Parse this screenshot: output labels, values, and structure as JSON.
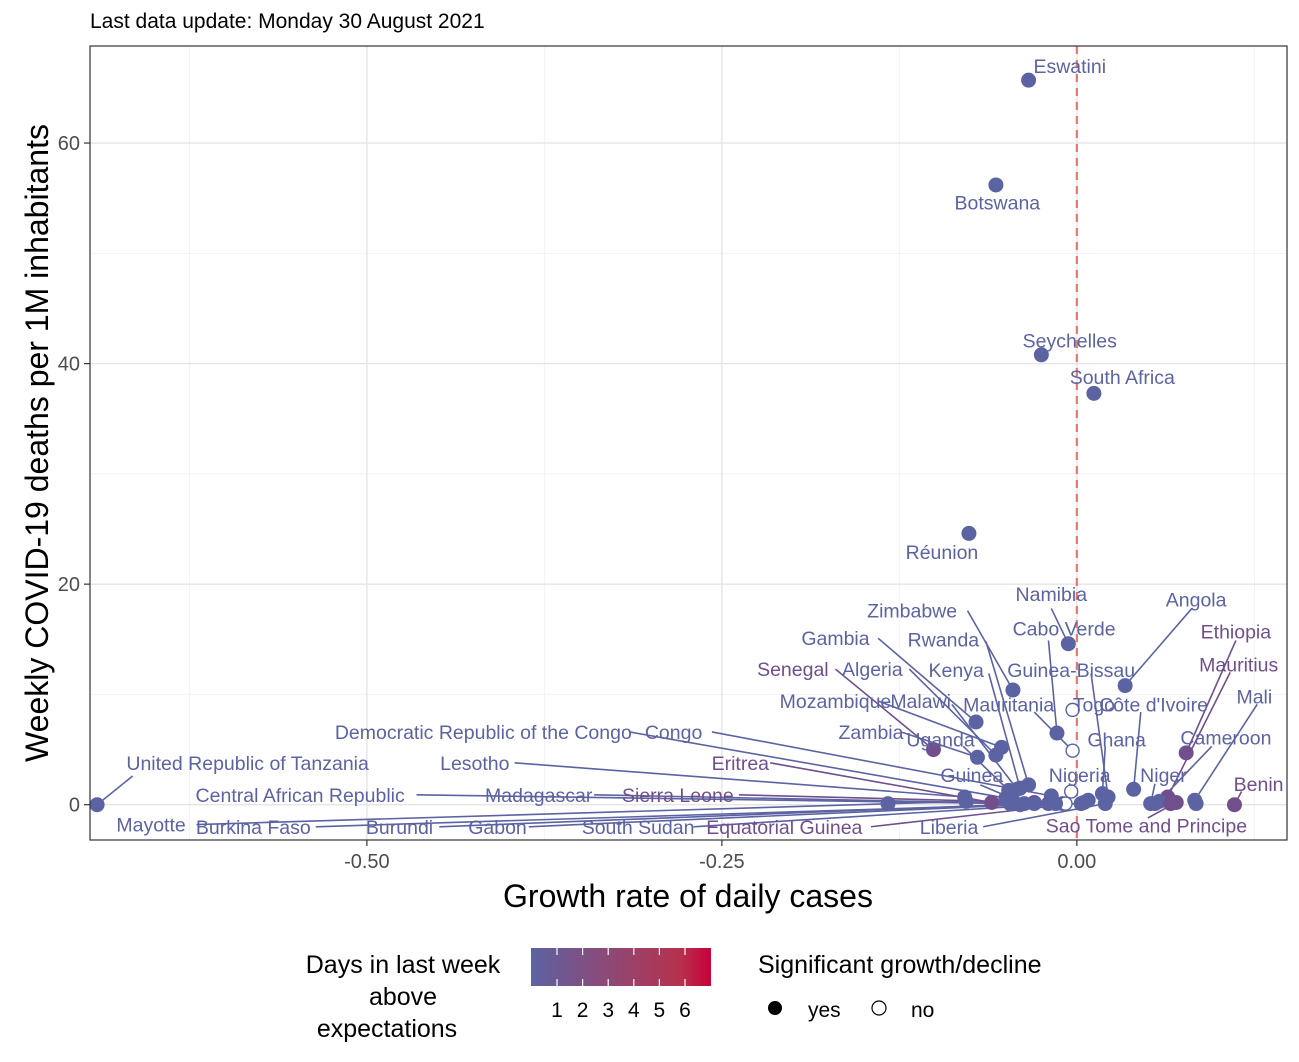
{
  "chart_data": {
    "type": "scatter",
    "subtitle": "Last data update: Monday 30 August 2021",
    "xlabel": "Growth rate of daily cases",
    "ylabel": "Weekly COVID-19 deaths per 1M inhabitants",
    "xlim": [
      -0.695,
      0.148
    ],
    "ylim": [
      -3.2,
      68.8
    ],
    "x_ticks": [
      -0.5,
      -0.25,
      0.0
    ],
    "x_tick_labels": [
      "-0.50",
      "-0.25",
      "0.00"
    ],
    "y_ticks": [
      0,
      20,
      40,
      60
    ],
    "y_tick_labels": [
      "0",
      "20",
      "40",
      "60"
    ],
    "reference_line": {
      "x": 0,
      "color": "#e8776f",
      "style": "dashed"
    },
    "grid": true,
    "colors": {
      "low": "#5c63a2",
      "high": "#c7003a",
      "mid": "#7a4f7f",
      "ref_line": "#e8776f",
      "grid_major": "#e5e5e5",
      "grid_minor": "#f2f2f2"
    },
    "points": [
      {
        "name": "Eswatini",
        "x": -0.034,
        "y": 65.7,
        "days": 1,
        "significant": true,
        "label_x": -0.005,
        "label_y": 67.0,
        "leader": false
      },
      {
        "name": "Botswana",
        "x": -0.057,
        "y": 56.2,
        "days": 1,
        "significant": true,
        "label_x": -0.056,
        "label_y": 54.6,
        "leader": false
      },
      {
        "name": "Seychelles",
        "x": -0.025,
        "y": 40.8,
        "days": 1,
        "significant": true,
        "label_x": -0.005,
        "label_y": 42.1,
        "leader": false
      },
      {
        "name": "South Africa",
        "x": 0.012,
        "y": 37.3,
        "days": 1,
        "significant": true,
        "label_x": 0.032,
        "label_y": 38.8,
        "leader": false
      },
      {
        "name": "Réunion",
        "x": -0.076,
        "y": 24.6,
        "days": 1,
        "significant": true,
        "label_x": -0.095,
        "label_y": 22.9,
        "leader": false
      },
      {
        "name": "Namibia",
        "x": -0.006,
        "y": 14.6,
        "days": 1,
        "significant": true,
        "label_x": -0.018,
        "label_y": 19.1,
        "leader": true,
        "leader_from_x": -0.018,
        "leader_from_y": 17.8
      },
      {
        "name": "Zimbabwe",
        "x": -0.045,
        "y": 10.4,
        "days": 1,
        "significant": true,
        "label_x": -0.116,
        "label_y": 17.6,
        "leader": true,
        "leader_from_x": -0.077,
        "leader_from_y": 17.6
      },
      {
        "name": "Angola",
        "x": 0.034,
        "y": 10.8,
        "days": 1,
        "significant": true,
        "label_x": 0.084,
        "label_y": 18.6,
        "leader": true,
        "leader_from_x": 0.081,
        "leader_from_y": 17.8
      },
      {
        "name": "Cabo Verde",
        "x": -0.014,
        "y": 6.5,
        "days": 1,
        "significant": true,
        "label_x": -0.009,
        "label_y": 16.0,
        "leader": true,
        "leader_from_x": -0.02,
        "leader_from_y": 14.9
      },
      {
        "name": "Ethiopia",
        "x": 0.077,
        "y": 4.7,
        "days": 2,
        "significant": true,
        "label_x": 0.112,
        "label_y": 15.7,
        "leader": true,
        "leader_from_x": 0.112,
        "leader_from_y": 14.9
      },
      {
        "name": "Gambia",
        "x": -0.071,
        "y": 7.5,
        "days": 1,
        "significant": true,
        "label_x": -0.17,
        "label_y": 15.1,
        "leader": true,
        "leader_from_x": -0.14,
        "leader_from_y": 15.1
      },
      {
        "name": "Rwanda",
        "x": -0.034,
        "y": 1.8,
        "days": 1,
        "significant": true,
        "label_x": -0.094,
        "label_y": 15.0,
        "leader": true,
        "leader_from_x": -0.064,
        "leader_from_y": 14.8
      },
      {
        "name": "Mauritius",
        "x": 0.064,
        "y": 0.7,
        "days": 2,
        "significant": true,
        "label_x": 0.114,
        "label_y": 12.7,
        "leader": true,
        "leader_from_x": 0.108,
        "leader_from_y": 12.0
      },
      {
        "name": "Senegal",
        "x": -0.101,
        "y": 5.0,
        "days": 2,
        "significant": true,
        "label_x": -0.2,
        "label_y": 12.3,
        "leader": true,
        "leader_from_x": -0.17,
        "leader_from_y": 12.3
      },
      {
        "name": "Algeria",
        "x": -0.057,
        "y": 4.5,
        "days": 1,
        "significant": true,
        "label_x": -0.144,
        "label_y": 12.3,
        "leader": true,
        "leader_from_x": -0.118,
        "leader_from_y": 12.3
      },
      {
        "name": "Kenya",
        "x": -0.04,
        "y": 1.5,
        "days": 1,
        "significant": true,
        "label_x": -0.085,
        "label_y": 12.2,
        "leader": true,
        "leader_from_x": -0.062,
        "leader_from_y": 11.9
      },
      {
        "name": "Guinea-Bissau",
        "x": 0.022,
        "y": 0.7,
        "days": 1,
        "significant": true,
        "label_x": -0.004,
        "label_y": 12.2,
        "leader": true,
        "leader_from_x": 0.01,
        "leader_from_y": 11.9
      },
      {
        "name": "Mali",
        "x": 0.083,
        "y": 0.4,
        "days": 1,
        "significant": true,
        "label_x": 0.125,
        "label_y": 9.8,
        "leader": true,
        "leader_from_x": 0.127,
        "leader_from_y": 9.1
      },
      {
        "name": "Mozambique",
        "x": -0.053,
        "y": 5.2,
        "days": 1,
        "significant": true,
        "label_x": -0.17,
        "label_y": 9.4,
        "leader": true,
        "leader_from_x": -0.14,
        "leader_from_y": 9.4
      },
      {
        "name": "Malawi",
        "x": -0.042,
        "y": 1.4,
        "days": 1,
        "significant": true,
        "label_x": -0.11,
        "label_y": 9.4,
        "leader": true,
        "leader_from_x": -0.088,
        "leader_from_y": 9.1
      },
      {
        "name": "Mauritania",
        "x": -0.003,
        "y": 4.9,
        "days": 1,
        "significant": false,
        "label_x": -0.048,
        "label_y": 9.1,
        "leader": true,
        "leader_from_x": -0.03,
        "leader_from_y": 8.4
      },
      {
        "name": "Togo",
        "x": -0.003,
        "y": 8.6,
        "days": 1,
        "significant": false,
        "label_x": 0.012,
        "label_y": 9.1,
        "leader": false
      },
      {
        "name": "Côte d'Ivoire",
        "x": 0.04,
        "y": 1.4,
        "days": 1,
        "significant": true,
        "label_x": 0.054,
        "label_y": 9.1,
        "leader": true,
        "leader_from_x": 0.045,
        "leader_from_y": 8.4
      },
      {
        "name": "Democratic Republic of the Congo",
        "x": -0.05,
        "y": 0.6,
        "days": 1,
        "significant": true,
        "label_x": -0.418,
        "label_y": 6.6,
        "leader": true,
        "leader_from_x": -0.315,
        "leader_from_y": 6.6
      },
      {
        "name": "Congo",
        "x": -0.018,
        "y": 0.8,
        "days": 1,
        "significant": true,
        "label_x": -0.284,
        "label_y": 6.6,
        "leader": true,
        "leader_from_x": -0.257,
        "leader_from_y": 6.6
      },
      {
        "name": "Zambia",
        "x": -0.07,
        "y": 4.3,
        "days": 1,
        "significant": true,
        "label_x": -0.145,
        "label_y": 6.6,
        "leader": true,
        "leader_from_x": -0.124,
        "leader_from_y": 6.6
      },
      {
        "name": "Uganda",
        "x": -0.048,
        "y": 1.3,
        "days": 1,
        "significant": true,
        "label_x": -0.096,
        "label_y": 5.9,
        "leader": true,
        "leader_from_x": -0.08,
        "leader_from_y": 5.3
      },
      {
        "name": "Ghana",
        "x": 0.018,
        "y": 1.0,
        "days": 1,
        "significant": true,
        "label_x": 0.028,
        "label_y": 5.9,
        "leader": true,
        "leader_from_x": 0.02,
        "leader_from_y": 5.3
      },
      {
        "name": "Cameroon",
        "x": 0.058,
        "y": 0.3,
        "days": 1,
        "significant": true,
        "label_x": 0.105,
        "label_y": 6.1,
        "leader": true,
        "leader_from_x": 0.095,
        "leader_from_y": 5.3
      },
      {
        "name": "Lesotho",
        "x": -0.079,
        "y": 0.7,
        "days": 1,
        "significant": true,
        "label_x": -0.424,
        "label_y": 3.8,
        "leader": true,
        "leader_from_x": -0.396,
        "leader_from_y": 3.8
      },
      {
        "name": "Eritrea",
        "x": -0.06,
        "y": 0.2,
        "days": 2,
        "significant": true,
        "label_x": -0.237,
        "label_y": 3.8,
        "leader": true,
        "leader_from_x": -0.216,
        "leader_from_y": 3.8
      },
      {
        "name": "United Republic of Tanzania",
        "x": -0.69,
        "y": 0.0,
        "days": 1,
        "significant": true,
        "label_x": -0.584,
        "label_y": 3.8,
        "leader": true,
        "leader_from_x": -0.665,
        "leader_from_y": 2.6
      },
      {
        "name": "Guinea",
        "x": -0.046,
        "y": 0.6,
        "days": 1,
        "significant": true,
        "label_x": -0.074,
        "label_y": 2.7,
        "leader": true,
        "leader_from_x": -0.068,
        "leader_from_y": 1.8
      },
      {
        "name": "Nigeria",
        "x": -0.004,
        "y": 1.2,
        "days": 1,
        "significant": false,
        "label_x": 0.002,
        "label_y": 2.7,
        "leader": true,
        "leader_from_x": -0.005,
        "leader_from_y": 1.8
      },
      {
        "name": "Niger",
        "x": 0.052,
        "y": 0.1,
        "days": 1,
        "significant": true,
        "label_x": 0.061,
        "label_y": 2.7,
        "leader": true,
        "leader_from_x": 0.055,
        "leader_from_y": 1.9
      },
      {
        "name": "Benin",
        "x": 0.111,
        "y": 0.0,
        "days": 2,
        "significant": true,
        "label_x": 0.128,
        "label_y": 1.9,
        "leader": true,
        "leader_from_x": 0.116,
        "leader_from_y": 1.2
      },
      {
        "name": "Central African Republic",
        "x": -0.047,
        "y": 0.1,
        "days": 1,
        "significant": true,
        "label_x": -0.547,
        "label_y": 0.9,
        "leader": true,
        "leader_from_x": -0.465,
        "leader_from_y": 0.9
      },
      {
        "name": "Madagascar",
        "x": -0.037,
        "y": 0.1,
        "days": 1,
        "significant": true,
        "label_x": -0.379,
        "label_y": 0.9,
        "leader": true,
        "leader_from_x": -0.34,
        "leader_from_y": 0.9
      },
      {
        "name": "Sierra Leone",
        "x": -0.03,
        "y": 0.2,
        "days": 2,
        "significant": true,
        "label_x": -0.281,
        "label_y": 0.9,
        "leader": true,
        "leader_from_x": -0.238,
        "leader_from_y": 0.9
      },
      {
        "name": "Mayotte",
        "x": -0.078,
        "y": 0.3,
        "days": 1,
        "significant": true,
        "label_x": -0.652,
        "label_y": -1.8,
        "leader": true,
        "leader_from_x": -0.62,
        "leader_from_y": -1.8
      },
      {
        "name": "Burkina Faso",
        "x": -0.04,
        "y": 0.0,
        "days": 1,
        "significant": true,
        "label_x": -0.58,
        "label_y": -2.0,
        "leader": true,
        "leader_from_x": -0.536,
        "leader_from_y": -2.0
      },
      {
        "name": "Burundi",
        "x": -0.03,
        "y": 0.1,
        "days": 1,
        "significant": true,
        "label_x": -0.477,
        "label_y": -2.0,
        "leader": true,
        "leader_from_x": -0.449,
        "leader_from_y": -2.0
      },
      {
        "name": "Gabon",
        "x": -0.02,
        "y": 0.1,
        "days": 1,
        "significant": true,
        "label_x": -0.408,
        "label_y": -2.0,
        "leader": true,
        "leader_from_x": -0.386,
        "leader_from_y": -2.0
      },
      {
        "name": "South Sudan",
        "x": -0.01,
        "y": 0.1,
        "days": 1,
        "significant": true,
        "label_x": -0.309,
        "label_y": -2.0,
        "leader": true,
        "leader_from_x": -0.27,
        "leader_from_y": -2.0
      },
      {
        "name": "Equatorial Guinea",
        "x": 0.005,
        "y": 0.2,
        "days": 2,
        "significant": true,
        "label_x": -0.206,
        "label_y": -2.0,
        "leader": true,
        "leader_from_x": -0.145,
        "leader_from_y": -2.0
      },
      {
        "name": "Liberia",
        "x": 0.02,
        "y": 0.1,
        "days": 1,
        "significant": true,
        "label_x": -0.09,
        "label_y": -2.0,
        "leader": true,
        "leader_from_x": -0.066,
        "leader_from_y": -2.0
      },
      {
        "name": "Sao Tome and Principe",
        "x": 0.07,
        "y": 0.2,
        "days": 2,
        "significant": true,
        "label_x": 0.049,
        "label_y": -1.9,
        "leader": true,
        "leader_from_x": 0.05,
        "leader_from_y": -1.2
      },
      {
        "name": "",
        "x": -0.133,
        "y": 0.1,
        "days": 1,
        "significant": true
      },
      {
        "name": "",
        "x": -0.008,
        "y": 0.1,
        "days": 1,
        "significant": false
      },
      {
        "name": "",
        "x": -0.015,
        "y": 0.1,
        "days": 1,
        "significant": true
      },
      {
        "name": "",
        "x": 0.003,
        "y": 0.1,
        "days": 1,
        "significant": true
      },
      {
        "name": "",
        "x": 0.008,
        "y": 0.4,
        "days": 1,
        "significant": true
      },
      {
        "name": "",
        "x": 0.055,
        "y": 0.1,
        "days": 1,
        "significant": true
      },
      {
        "name": "",
        "x": 0.066,
        "y": 0.1,
        "days": 2,
        "significant": true
      },
      {
        "name": "",
        "x": 0.084,
        "y": 0.1,
        "days": 1,
        "significant": true
      }
    ],
    "legend": {
      "color_title": "Days in last week above expectations",
      "color_title_lines": [
        "Days in last week",
        "above",
        "expectations"
      ],
      "color_ticks": [
        "1",
        "2",
        "3",
        "4",
        "5",
        "6"
      ],
      "color_stops": [
        "#5c63a2",
        "#6f5891",
        "#834e80",
        "#94456f",
        "#a53b5e",
        "#b6314c",
        "#c7003a"
      ],
      "shape_title": "Significant growth/decline",
      "shape_items": [
        {
          "label": "yes",
          "filled": true
        },
        {
          "label": "no",
          "filled": false
        }
      ],
      "placement": "bottom"
    }
  }
}
